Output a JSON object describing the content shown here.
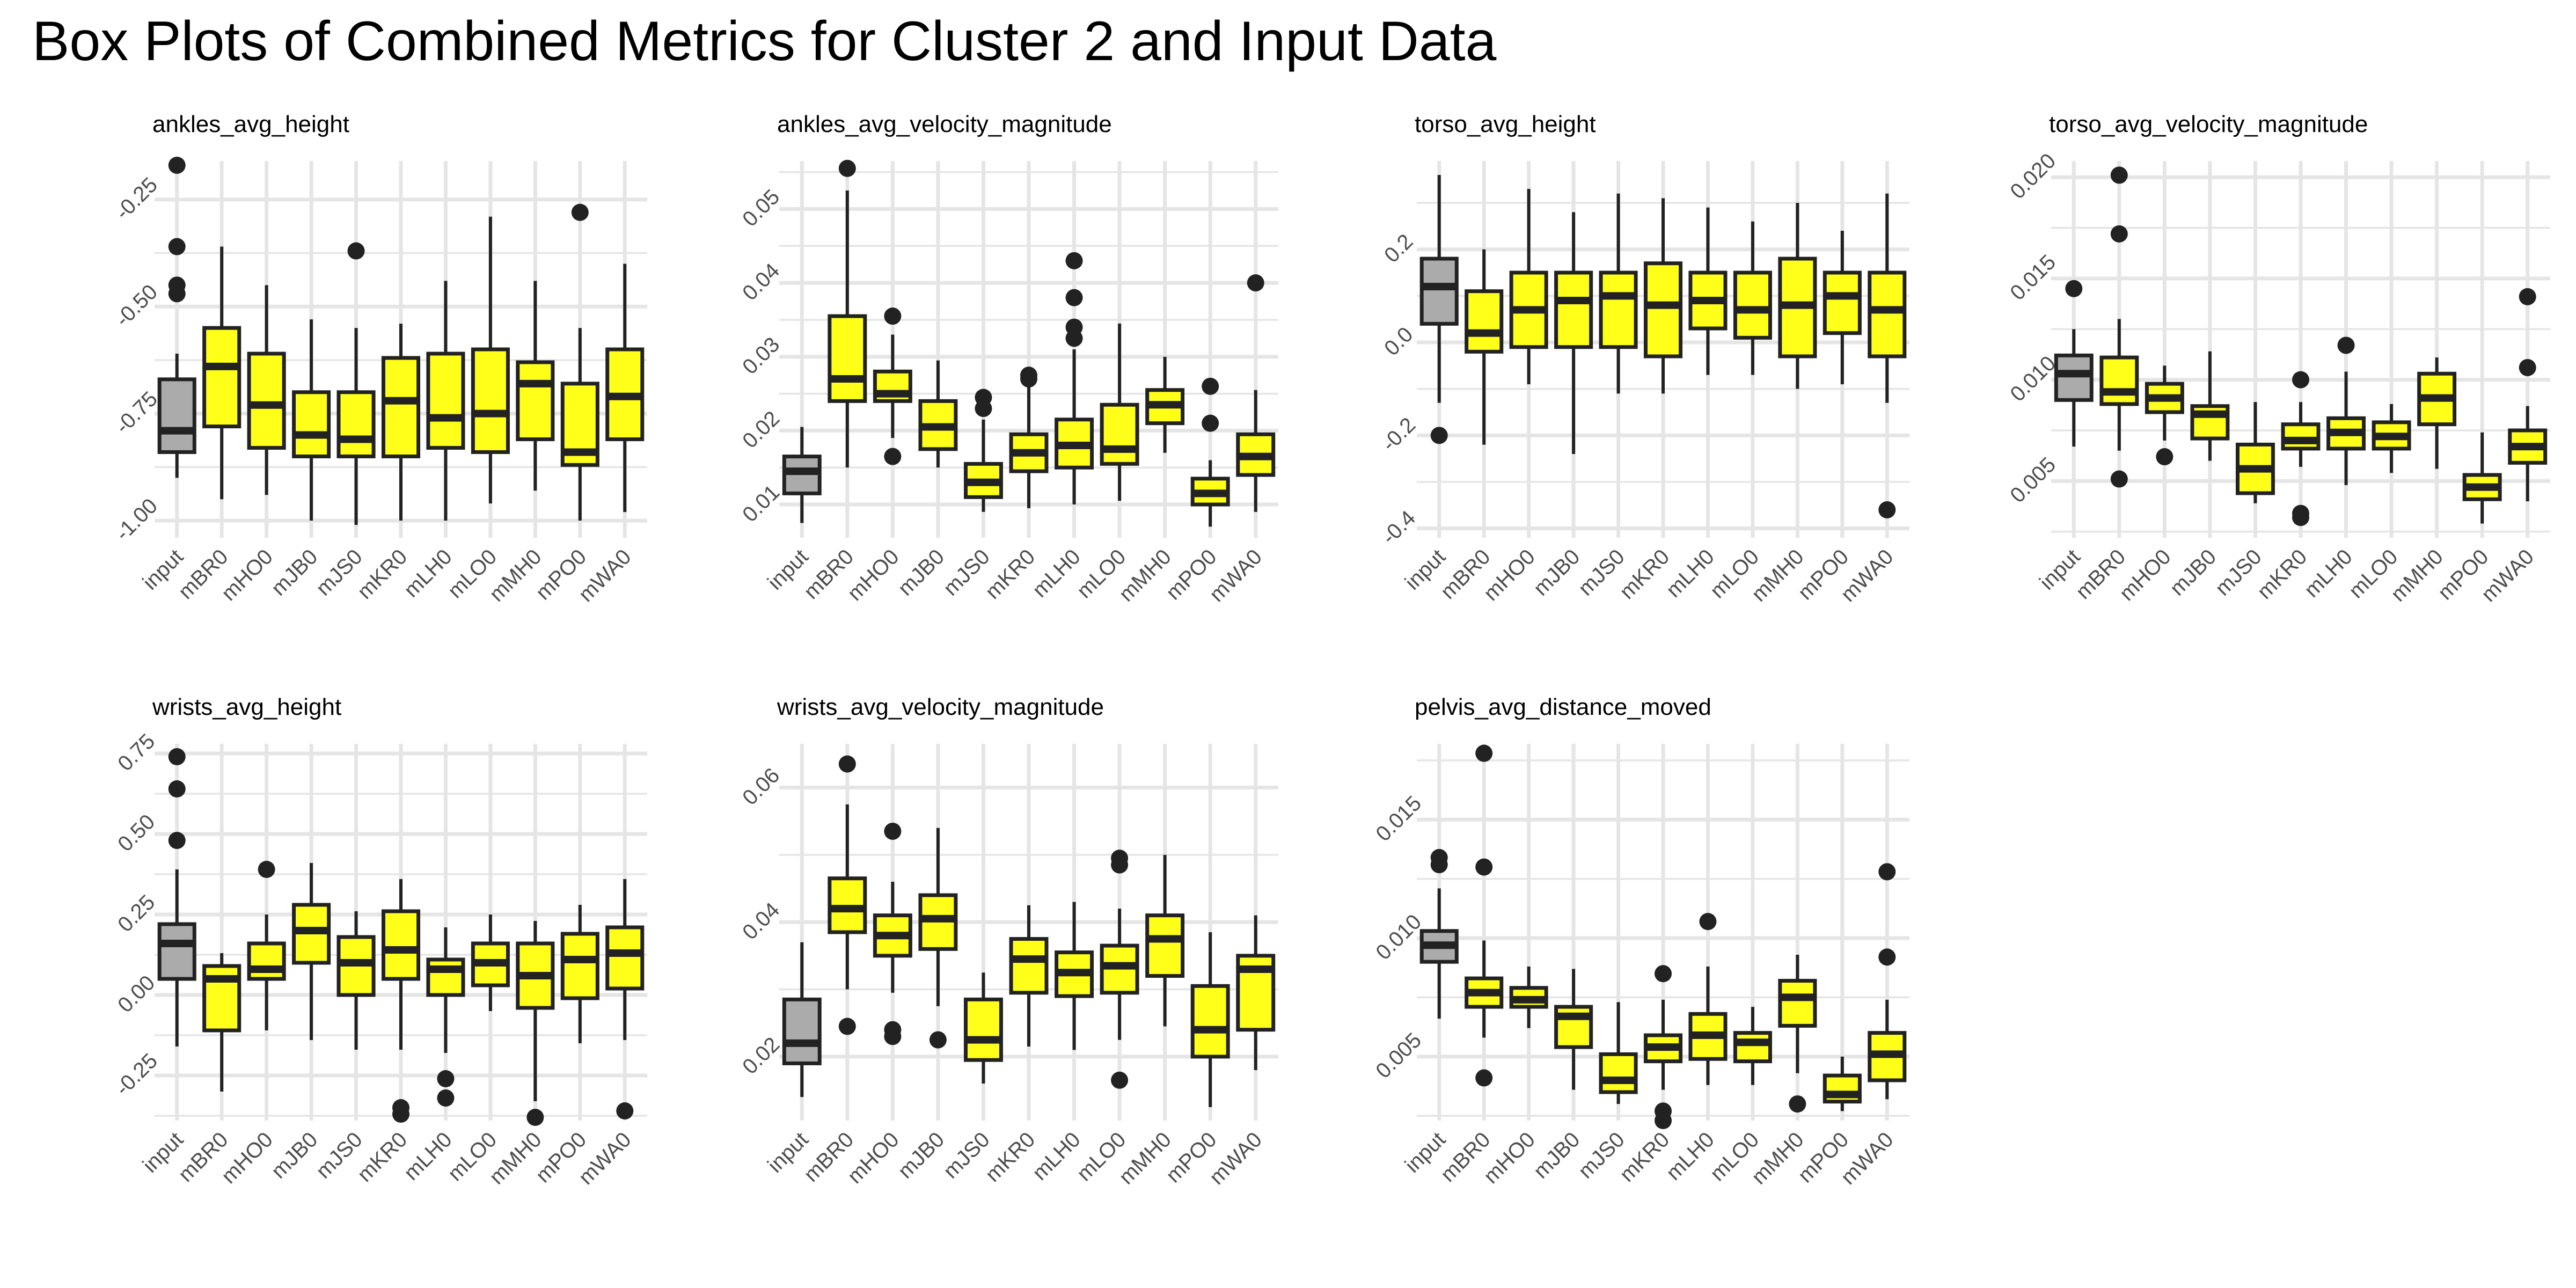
{
  "figure": {
    "title": "Box Plots of Combined Metrics for Cluster 2 and Input Data",
    "colors": {
      "input_fill": "#ABABAB",
      "cluster_fill": "#FFFF1A",
      "outline": "#222222",
      "grid": "#E5E5E5",
      "outlier": "#222222",
      "tick_text": "#4D4D4D"
    }
  },
  "chart_data": [
    {
      "type": "boxplot",
      "title": "ankles_avg_height",
      "categories": [
        "input",
        "mBR0",
        "mHO0",
        "mJB0",
        "mJS0",
        "mKR0",
        "mLH0",
        "mLO0",
        "mMH0",
        "mPO0",
        "mWA0"
      ],
      "ylim": [
        -1.04,
        -0.16
      ],
      "yticks": [
        -1.0,
        -0.75,
        -0.5,
        -0.25
      ],
      "ytick_labels": [
        "-1.00",
        "-0.75",
        "-0.50",
        "-0.25"
      ],
      "boxes": [
        {
          "min": -0.9,
          "q1": -0.84,
          "median": -0.79,
          "q3": -0.67,
          "max": -0.61,
          "outliers": [
            -0.17,
            -0.36,
            -0.45,
            -0.47
          ]
        },
        {
          "min": -0.95,
          "q1": -0.78,
          "median": -0.64,
          "q3": -0.55,
          "max": -0.36,
          "outliers": []
        },
        {
          "min": -0.94,
          "q1": -0.83,
          "median": -0.73,
          "q3": -0.61,
          "max": -0.45,
          "outliers": []
        },
        {
          "min": -1.0,
          "q1": -0.85,
          "median": -0.8,
          "q3": -0.7,
          "max": -0.53,
          "outliers": []
        },
        {
          "min": -1.01,
          "q1": -0.85,
          "median": -0.81,
          "q3": -0.7,
          "max": -0.55,
          "outliers": [
            -0.37
          ]
        },
        {
          "min": -1.0,
          "q1": -0.85,
          "median": -0.72,
          "q3": -0.62,
          "max": -0.54,
          "outliers": []
        },
        {
          "min": -1.0,
          "q1": -0.83,
          "median": -0.76,
          "q3": -0.61,
          "max": -0.44,
          "outliers": []
        },
        {
          "min": -0.96,
          "q1": -0.84,
          "median": -0.75,
          "q3": -0.6,
          "max": -0.29,
          "outliers": []
        },
        {
          "min": -0.93,
          "q1": -0.81,
          "median": -0.68,
          "q3": -0.63,
          "max": -0.44,
          "outliers": []
        },
        {
          "min": -1.0,
          "q1": -0.87,
          "median": -0.84,
          "q3": -0.68,
          "max": -0.55,
          "outliers": [
            -0.28
          ]
        },
        {
          "min": -0.98,
          "q1": -0.81,
          "median": -0.71,
          "q3": -0.6,
          "max": -0.4,
          "outliers": []
        }
      ]
    },
    {
      "type": "boxplot",
      "title": "ankles_avg_velocity_magnitude",
      "categories": [
        "input",
        "mBR0",
        "mHO0",
        "mJB0",
        "mJS0",
        "mKR0",
        "mLH0",
        "mLO0",
        "mMH0",
        "mPO0",
        "mWA0"
      ],
      "ylim": [
        0.0055,
        0.0565
      ],
      "yticks": [
        0.01,
        0.02,
        0.03,
        0.04,
        0.05
      ],
      "ytick_labels": [
        "0.01",
        "0.02",
        "0.03",
        "0.04",
        "0.05"
      ],
      "boxes": [
        {
          "min": 0.0075,
          "q1": 0.0115,
          "median": 0.0145,
          "q3": 0.0165,
          "max": 0.0205,
          "outliers": []
        },
        {
          "min": 0.015,
          "q1": 0.024,
          "median": 0.027,
          "q3": 0.0355,
          "max": 0.0525,
          "outliers": [
            0.0555
          ]
        },
        {
          "min": 0.019,
          "q1": 0.024,
          "median": 0.025,
          "q3": 0.028,
          "max": 0.033,
          "outliers": [
            0.0165,
            0.0355
          ]
        },
        {
          "min": 0.015,
          "q1": 0.0175,
          "median": 0.0205,
          "q3": 0.024,
          "max": 0.0295,
          "outliers": []
        },
        {
          "min": 0.009,
          "q1": 0.011,
          "median": 0.013,
          "q3": 0.0155,
          "max": 0.0215,
          "outliers": [
            0.023,
            0.0245
          ]
        },
        {
          "min": 0.0095,
          "q1": 0.0145,
          "median": 0.017,
          "q3": 0.0195,
          "max": 0.026,
          "outliers": [
            0.027,
            0.0275
          ]
        },
        {
          "min": 0.01,
          "q1": 0.015,
          "median": 0.018,
          "q3": 0.0215,
          "max": 0.031,
          "outliers": [
            0.0325,
            0.034,
            0.038,
            0.043
          ]
        },
        {
          "min": 0.0105,
          "q1": 0.0155,
          "median": 0.0175,
          "q3": 0.0235,
          "max": 0.0345,
          "outliers": []
        },
        {
          "min": 0.017,
          "q1": 0.021,
          "median": 0.0235,
          "q3": 0.0255,
          "max": 0.03,
          "outliers": []
        },
        {
          "min": 0.007,
          "q1": 0.01,
          "median": 0.0115,
          "q3": 0.0135,
          "max": 0.016,
          "outliers": [
            0.021,
            0.026
          ]
        },
        {
          "min": 0.009,
          "q1": 0.014,
          "median": 0.0165,
          "q3": 0.0195,
          "max": 0.0255,
          "outliers": [
            0.04
          ]
        }
      ]
    },
    {
      "type": "boxplot",
      "title": "torso_avg_height",
      "categories": [
        "input",
        "mBR0",
        "mHO0",
        "mJB0",
        "mJS0",
        "mKR0",
        "mLH0",
        "mLO0",
        "mMH0",
        "mPO0",
        "mWA0"
      ],
      "ylim": [
        -0.42,
        0.39
      ],
      "yticks": [
        -0.4,
        -0.2,
        0.0,
        0.2
      ],
      "ytick_labels": [
        "-0.4",
        "-0.2",
        "0.0",
        "0.2"
      ],
      "boxes": [
        {
          "min": -0.13,
          "q1": 0.04,
          "median": 0.12,
          "q3": 0.18,
          "max": 0.36,
          "outliers": [
            -0.2
          ]
        },
        {
          "min": -0.22,
          "q1": -0.02,
          "median": 0.02,
          "q3": 0.11,
          "max": 0.2,
          "outliers": []
        },
        {
          "min": -0.09,
          "q1": -0.01,
          "median": 0.07,
          "q3": 0.15,
          "max": 0.33,
          "outliers": []
        },
        {
          "min": -0.24,
          "q1": -0.01,
          "median": 0.09,
          "q3": 0.15,
          "max": 0.28,
          "outliers": []
        },
        {
          "min": -0.11,
          "q1": -0.01,
          "median": 0.1,
          "q3": 0.15,
          "max": 0.32,
          "outliers": []
        },
        {
          "min": -0.11,
          "q1": -0.03,
          "median": 0.08,
          "q3": 0.17,
          "max": 0.31,
          "outliers": []
        },
        {
          "min": -0.07,
          "q1": 0.03,
          "median": 0.09,
          "q3": 0.15,
          "max": 0.29,
          "outliers": []
        },
        {
          "min": -0.07,
          "q1": 0.01,
          "median": 0.07,
          "q3": 0.15,
          "max": 0.26,
          "outliers": []
        },
        {
          "min": -0.1,
          "q1": -0.03,
          "median": 0.08,
          "q3": 0.18,
          "max": 0.3,
          "outliers": []
        },
        {
          "min": -0.09,
          "q1": 0.02,
          "median": 0.1,
          "q3": 0.15,
          "max": 0.24,
          "outliers": []
        },
        {
          "min": -0.13,
          "q1": -0.03,
          "median": 0.07,
          "q3": 0.15,
          "max": 0.32,
          "outliers": [
            -0.36
          ]
        }
      ]
    },
    {
      "type": "boxplot",
      "title": "torso_avg_velocity_magnitude",
      "categories": [
        "input",
        "mBR0",
        "mHO0",
        "mJB0",
        "mJS0",
        "mKR0",
        "mLH0",
        "mLO0",
        "mMH0",
        "mPO0",
        "mWA0"
      ],
      "ylim": [
        0.0022,
        0.0208
      ],
      "yticks": [
        0.005,
        0.01,
        0.015,
        0.02
      ],
      "ytick_labels": [
        "0.005",
        "0.010",
        "0.015",
        "0.020"
      ],
      "boxes": [
        {
          "min": 0.0067,
          "q1": 0.009,
          "median": 0.0103,
          "q3": 0.0112,
          "max": 0.0125,
          "outliers": [
            0.0145
          ]
        },
        {
          "min": 0.0065,
          "q1": 0.0088,
          "median": 0.0094,
          "q3": 0.0111,
          "max": 0.013,
          "outliers": [
            0.0051,
            0.0172,
            0.0201
          ]
        },
        {
          "min": 0.007,
          "q1": 0.0084,
          "median": 0.0091,
          "q3": 0.0098,
          "max": 0.0107,
          "outliers": [
            0.0062
          ]
        },
        {
          "min": 0.006,
          "q1": 0.0071,
          "median": 0.0083,
          "q3": 0.0087,
          "max": 0.0114,
          "outliers": []
        },
        {
          "min": 0.0039,
          "q1": 0.0044,
          "median": 0.0056,
          "q3": 0.0068,
          "max": 0.0089,
          "outliers": []
        },
        {
          "min": 0.0057,
          "q1": 0.0066,
          "median": 0.007,
          "q3": 0.0078,
          "max": 0.0089,
          "outliers": [
            0.0032,
            0.0034,
            0.01
          ]
        },
        {
          "min": 0.0048,
          "q1": 0.0066,
          "median": 0.0074,
          "q3": 0.0081,
          "max": 0.0104,
          "outliers": [
            0.0117
          ]
        },
        {
          "min": 0.0054,
          "q1": 0.0066,
          "median": 0.0072,
          "q3": 0.0079,
          "max": 0.0088,
          "outliers": []
        },
        {
          "min": 0.0056,
          "q1": 0.0078,
          "median": 0.0091,
          "q3": 0.0103,
          "max": 0.0111,
          "outliers": []
        },
        {
          "min": 0.0029,
          "q1": 0.0041,
          "median": 0.0047,
          "q3": 0.0053,
          "max": 0.0074,
          "outliers": []
        },
        {
          "min": 0.004,
          "q1": 0.0059,
          "median": 0.0067,
          "q3": 0.0075,
          "max": 0.0087,
          "outliers": [
            0.0106,
            0.0141
          ]
        }
      ]
    },
    {
      "type": "boxplot",
      "title": "wrists_avg_height",
      "categories": [
        "input",
        "mBR0",
        "mHO0",
        "mJB0",
        "mJS0",
        "mKR0",
        "mLH0",
        "mLO0",
        "mMH0",
        "mPO0",
        "mWA0"
      ],
      "ylim": [
        -0.39,
        0.78
      ],
      "yticks": [
        -0.25,
        0.0,
        0.25,
        0.5,
        0.75
      ],
      "ytick_labels": [
        "-0.25",
        "0.00",
        "0.25",
        "0.50",
        "0.75"
      ],
      "boxes": [
        {
          "min": -0.16,
          "q1": 0.05,
          "median": 0.16,
          "q3": 0.22,
          "max": 0.39,
          "outliers": [
            0.48,
            0.64,
            0.74
          ]
        },
        {
          "min": -0.3,
          "q1": -0.11,
          "median": 0.05,
          "q3": 0.09,
          "max": 0.13,
          "outliers": []
        },
        {
          "min": -0.11,
          "q1": 0.05,
          "median": 0.08,
          "q3": 0.16,
          "max": 0.25,
          "outliers": [
            0.39
          ]
        },
        {
          "min": -0.14,
          "q1": 0.1,
          "median": 0.2,
          "q3": 0.28,
          "max": 0.41,
          "outliers": []
        },
        {
          "min": -0.17,
          "q1": 0.0,
          "median": 0.1,
          "q3": 0.18,
          "max": 0.26,
          "outliers": []
        },
        {
          "min": -0.17,
          "q1": 0.05,
          "median": 0.14,
          "q3": 0.26,
          "max": 0.36,
          "outliers": [
            -0.35,
            -0.37
          ]
        },
        {
          "min": -0.18,
          "q1": 0.0,
          "median": 0.08,
          "q3": 0.11,
          "max": 0.21,
          "outliers": [
            -0.26,
            -0.32
          ]
        },
        {
          "min": -0.05,
          "q1": 0.03,
          "median": 0.1,
          "q3": 0.16,
          "max": 0.25,
          "outliers": []
        },
        {
          "min": -0.33,
          "q1": -0.04,
          "median": 0.06,
          "q3": 0.16,
          "max": 0.23,
          "outliers": [
            -0.38
          ]
        },
        {
          "min": -0.15,
          "q1": -0.01,
          "median": 0.11,
          "q3": 0.19,
          "max": 0.28,
          "outliers": []
        },
        {
          "min": -0.14,
          "q1": 0.02,
          "median": 0.13,
          "q3": 0.21,
          "max": 0.36,
          "outliers": [
            -0.36
          ]
        }
      ]
    },
    {
      "type": "boxplot",
      "title": "wrists_avg_velocity_magnitude",
      "categories": [
        "input",
        "mBR0",
        "mHO0",
        "mJB0",
        "mJS0",
        "mKR0",
        "mLH0",
        "mLO0",
        "mMH0",
        "mPO0",
        "mWA0"
      ],
      "ylim": [
        0.0105,
        0.0665
      ],
      "yticks": [
        0.02,
        0.04,
        0.06
      ],
      "ytick_labels": [
        "0.02",
        "0.04",
        "0.06"
      ],
      "boxes": [
        {
          "min": 0.014,
          "q1": 0.019,
          "median": 0.022,
          "q3": 0.0285,
          "max": 0.037,
          "outliers": []
        },
        {
          "min": 0.03,
          "q1": 0.0385,
          "median": 0.042,
          "q3": 0.0465,
          "max": 0.0575,
          "outliers": [
            0.0245,
            0.0635
          ]
        },
        {
          "min": 0.0295,
          "q1": 0.035,
          "median": 0.038,
          "q3": 0.041,
          "max": 0.046,
          "outliers": [
            0.023,
            0.024,
            0.0535
          ]
        },
        {
          "min": 0.0275,
          "q1": 0.036,
          "median": 0.0405,
          "q3": 0.044,
          "max": 0.054,
          "outliers": [
            0.0225
          ]
        },
        {
          "min": 0.016,
          "q1": 0.0195,
          "median": 0.0225,
          "q3": 0.0285,
          "max": 0.0325,
          "outliers": []
        },
        {
          "min": 0.0215,
          "q1": 0.0295,
          "median": 0.0345,
          "q3": 0.0375,
          "max": 0.0425,
          "outliers": []
        },
        {
          "min": 0.021,
          "q1": 0.029,
          "median": 0.0325,
          "q3": 0.0355,
          "max": 0.043,
          "outliers": []
        },
        {
          "min": 0.0225,
          "q1": 0.0295,
          "median": 0.0335,
          "q3": 0.0365,
          "max": 0.042,
          "outliers": [
            0.0165,
            0.0485,
            0.0495
          ]
        },
        {
          "min": 0.0245,
          "q1": 0.032,
          "median": 0.0375,
          "q3": 0.041,
          "max": 0.05,
          "outliers": []
        },
        {
          "min": 0.0125,
          "q1": 0.02,
          "median": 0.024,
          "q3": 0.0305,
          "max": 0.0385,
          "outliers": []
        },
        {
          "min": 0.018,
          "q1": 0.024,
          "median": 0.033,
          "q3": 0.035,
          "max": 0.041,
          "outliers": []
        }
      ]
    },
    {
      "type": "boxplot",
      "title": "pelvis_avg_distance_moved",
      "categories": [
        "input",
        "mBR0",
        "mHO0",
        "mJB0",
        "mJS0",
        "mKR0",
        "mLH0",
        "mLO0",
        "mMH0",
        "mPO0",
        "mWA0"
      ],
      "ylim": [
        0.0023,
        0.0182
      ],
      "yticks": [
        0.005,
        0.01,
        0.015
      ],
      "ytick_labels": [
        "0.005",
        "0.010",
        "0.015"
      ],
      "boxes": [
        {
          "min": 0.0066,
          "q1": 0.009,
          "median": 0.0097,
          "q3": 0.0103,
          "max": 0.0121,
          "outliers": [
            0.0131,
            0.0134
          ]
        },
        {
          "min": 0.0058,
          "q1": 0.0071,
          "median": 0.0077,
          "q3": 0.0083,
          "max": 0.0099,
          "outliers": [
            0.0041,
            0.013,
            0.0178
          ]
        },
        {
          "min": 0.0062,
          "q1": 0.0071,
          "median": 0.0074,
          "q3": 0.0079,
          "max": 0.0088,
          "outliers": []
        },
        {
          "min": 0.0036,
          "q1": 0.0054,
          "median": 0.0067,
          "q3": 0.0071,
          "max": 0.0087,
          "outliers": []
        },
        {
          "min": 0.003,
          "q1": 0.0035,
          "median": 0.004,
          "q3": 0.0051,
          "max": 0.0073,
          "outliers": []
        },
        {
          "min": 0.0036,
          "q1": 0.0048,
          "median": 0.0054,
          "q3": 0.0059,
          "max": 0.0074,
          "outliers": [
            0.0023,
            0.0027,
            0.0085
          ]
        },
        {
          "min": 0.0038,
          "q1": 0.0049,
          "median": 0.0059,
          "q3": 0.0068,
          "max": 0.0088,
          "outliers": [
            0.0107
          ]
        },
        {
          "min": 0.0038,
          "q1": 0.0048,
          "median": 0.0056,
          "q3": 0.006,
          "max": 0.0071,
          "outliers": []
        },
        {
          "min": 0.0043,
          "q1": 0.0063,
          "median": 0.0075,
          "q3": 0.0082,
          "max": 0.0093,
          "outliers": [
            0.003
          ]
        },
        {
          "min": 0.0027,
          "q1": 0.0031,
          "median": 0.0034,
          "q3": 0.0042,
          "max": 0.005,
          "outliers": []
        },
        {
          "min": 0.0032,
          "q1": 0.004,
          "median": 0.0051,
          "q3": 0.006,
          "max": 0.0074,
          "outliers": [
            0.0092,
            0.0128
          ]
        }
      ]
    }
  ]
}
